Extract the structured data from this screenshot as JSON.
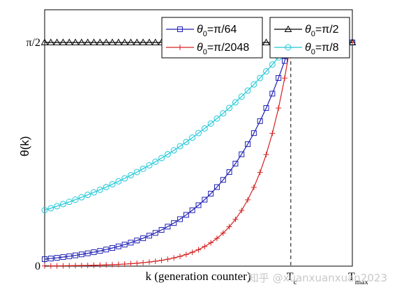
{
  "chart_data": {
    "type": "line",
    "xlabel": "k (generation counter)",
    "ylabel": "θ(k)",
    "xlim": [
      0,
      100
    ],
    "ylim": [
      0,
      1.8
    ],
    "y_ticks": [
      {
        "value": 0,
        "label": "0"
      },
      {
        "value": 1.5708,
        "label": "π/2"
      }
    ],
    "x_ticks": [
      {
        "value": 80,
        "main": "T",
        "sub": "c"
      },
      {
        "value": 100,
        "main": "T",
        "sub": "max"
      }
    ],
    "vlines": [
      80,
      100
    ],
    "grid": false,
    "legend_boxes": [
      {
        "position": "top-center",
        "series": [
          0,
          1
        ]
      },
      {
        "position": "top-right",
        "series": [
          2,
          3
        ]
      }
    ],
    "series": [
      {
        "name_parts": [
          "θ",
          "0",
          "=π/64"
        ],
        "color": "#1f1fb4",
        "marker": "square",
        "k_start": 0,
        "k_end": 80,
        "step": 2,
        "y_start": 0.049,
        "y_end": 1.5708,
        "after": "flat"
      },
      {
        "name_parts": [
          "θ",
          "0",
          "=π/2048"
        ],
        "color": "#d62020",
        "marker": "plus",
        "k_start": 0,
        "k_end": 80,
        "step": 2,
        "y_start": 0.0015,
        "y_end": 1.5708,
        "after": "flat"
      },
      {
        "name_parts": [
          "θ",
          "0",
          "=π/2"
        ],
        "color": "#000000",
        "marker": "triangle",
        "k_start": 0,
        "k_end": 100,
        "step": 2,
        "y_start": 1.5708,
        "y_end": 1.5708,
        "after": "none"
      },
      {
        "name_parts": [
          "θ",
          "0",
          "=π/8"
        ],
        "color": "#1fc8d8",
        "marker": "circle",
        "k_start": 0,
        "k_end": 80,
        "step": 2,
        "y_start": 0.3927,
        "y_end": 1.5708,
        "after": "flat"
      }
    ]
  },
  "watermark": "知乎 @xuanxuanxuan2023"
}
